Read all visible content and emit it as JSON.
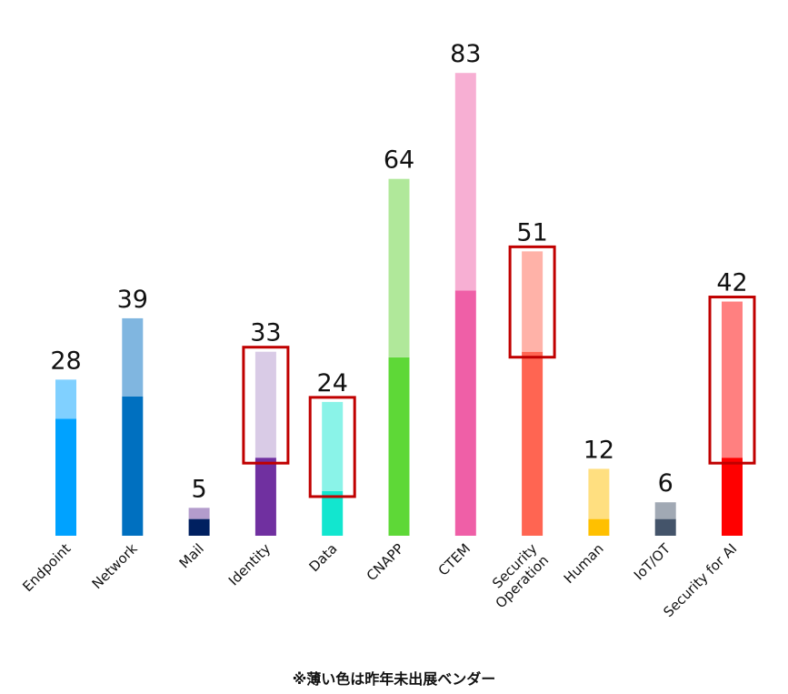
{
  "chart_data": {
    "type": "bar",
    "stacked": true,
    "categories": [
      "Endpoint",
      "Network",
      "Mail",
      "Identity",
      "Data",
      "CNAPP",
      "CTEM",
      "Security Operation",
      "Human",
      "IoT/OT",
      "Security for AI"
    ],
    "totals": [
      28,
      39,
      5,
      33,
      24,
      64,
      83,
      51,
      12,
      6,
      42
    ],
    "series": [
      {
        "values": [
          21,
          25,
          3,
          14,
          8,
          32,
          44,
          33,
          3,
          3,
          14
        ]
      },
      {
        "values": [
          7,
          14,
          2,
          19,
          16,
          32,
          39,
          18,
          9,
          3,
          28
        ]
      }
    ],
    "dark_colors": [
      "#00a2ff",
      "#0070c0",
      "#002060",
      "#7030a0",
      "#12e6cf",
      "#5ed837",
      "#ef5fa7",
      "#ff6552",
      "#ffc000",
      "#44546a",
      "#ff0000"
    ],
    "light_colors": [
      "#80d0ff",
      "#80b6e0",
      "#b39ccc",
      "#d9cbe6",
      "#8af3e8",
      "#b0e89a",
      "#f7afd3",
      "#ffb2a8",
      "#ffdf80",
      "#a1a9b4",
      "#ff8080"
    ],
    "highlighted": [
      "Identity",
      "Data",
      "Security Operation",
      "Security for AI"
    ],
    "highlight_color": "#c00000",
    "ylim": [
      0,
      90
    ],
    "gridlines": false,
    "legend": "none",
    "footnote": "※薄い色は昨年未出展ベンダー"
  }
}
